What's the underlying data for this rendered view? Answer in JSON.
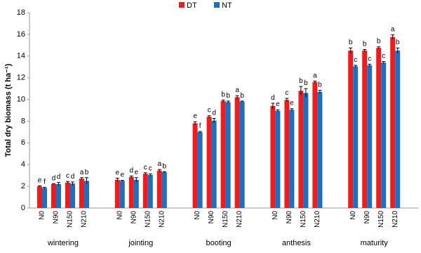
{
  "chart_data": {
    "type": "bar",
    "y_label": "Total dry biomass (t ha⁻¹)",
    "groups": [
      "wintering",
      "jointing",
      "booting",
      "anthesis",
      "maturity"
    ],
    "categories": [
      "N0",
      "N90",
      "N150",
      "N210",
      "N0",
      "N90",
      "N150",
      "N210",
      "N0",
      "N90",
      "N150",
      "N210",
      "N0",
      "N90",
      "N150",
      "N210",
      "N0",
      "N90",
      "N150",
      "N210"
    ],
    "series": [
      {
        "name": "DT",
        "color": "#ee1c1c",
        "values": [
          2.0,
          2.2,
          2.35,
          2.7,
          2.6,
          2.85,
          3.15,
          3.45,
          7.8,
          8.4,
          9.85,
          10.2,
          9.4,
          9.95,
          10.8,
          11.6,
          14.5,
          14.5,
          14.75,
          15.75
        ],
        "errors": [
          0.05,
          0.05,
          0.1,
          0.1,
          0.15,
          0.1,
          0.1,
          0.1,
          0.15,
          0.1,
          0.1,
          0.15,
          0.25,
          0.15,
          0.4,
          0.1,
          0.25,
          0.1,
          0.1,
          0.2
        ],
        "letters": [
          "e",
          "d",
          "c",
          "a",
          "e",
          "d",
          "c",
          "a",
          "e",
          "c",
          "b",
          "a",
          "d",
          "c",
          "b",
          "a",
          "b",
          "b",
          "b",
          "a"
        ]
      },
      {
        "name": "NT",
        "color": "#1f6fc1",
        "values": [
          1.85,
          2.2,
          2.25,
          2.5,
          2.5,
          2.6,
          3.05,
          3.3,
          7.0,
          8.05,
          9.75,
          9.8,
          8.95,
          9.05,
          10.6,
          10.7,
          13.05,
          13.15,
          13.4,
          14.5
        ],
        "errors": [
          0.05,
          0.15,
          0.15,
          0.3,
          0.05,
          0.2,
          0.1,
          0.05,
          0.05,
          0.2,
          0.1,
          0.05,
          0.1,
          0.1,
          0.4,
          0.15,
          0.1,
          0.1,
          0.1,
          0.25
        ],
        "letters": [
          "f",
          "d",
          "d",
          "b",
          "e",
          "e",
          "c",
          "b",
          "f",
          "d",
          "b",
          "b",
          "e",
          "e",
          "b",
          "b",
          "c",
          "c",
          "c",
          "b"
        ]
      }
    ],
    "ylim": [
      0,
      18
    ],
    "yticks": [
      0,
      2,
      4,
      6,
      8,
      10,
      12,
      14,
      16,
      18
    ],
    "grid": false
  }
}
